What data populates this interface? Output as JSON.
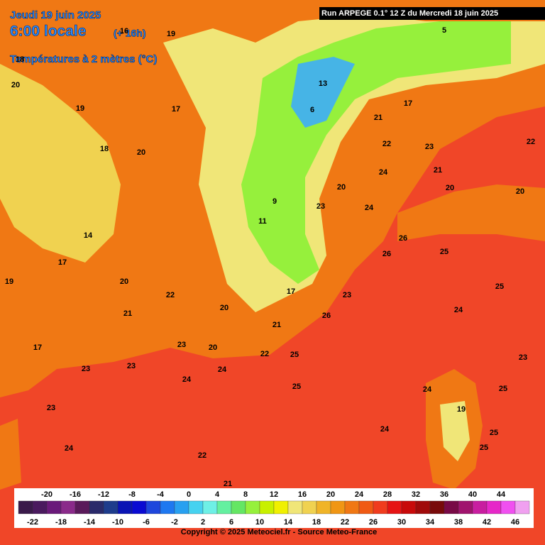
{
  "header": {
    "date": "Jeudi 19 juin 2025",
    "time": "6:00 locale",
    "lead": "(+ 16h)",
    "parameter": "Températures à 2 mètres (°C)",
    "run": "Run ARPEGE 0.1° 12 Z du Mercredi 18 juin 2025"
  },
  "map_labels": [
    22,
    23,
    24,
    20,
    21,
    20,
    25,
    26,
    26,
    24,
    25,
    23,
    24,
    25,
    24,
    25,
    25,
    24,
    23,
    23,
    23,
    24,
    22,
    21,
    25,
    25,
    24,
    22,
    23,
    20,
    22,
    20,
    21,
    20,
    17,
    14,
    18,
    19,
    20,
    16,
    19,
    17,
    18,
    20,
    19,
    17,
    21,
    23,
    26,
    20,
    23,
    24,
    22,
    21,
    13,
    6,
    9,
    11,
    5,
    17,
    19,
    17
  ],
  "scale": {
    "labels": [
      -22,
      -20,
      -18,
      -16,
      -14,
      -12,
      -10,
      -8,
      -6,
      -4,
      -2,
      0,
      2,
      4,
      6,
      8,
      10,
      12,
      14,
      16,
      18,
      20,
      22,
      24,
      26,
      28,
      30,
      32,
      34,
      36,
      38,
      40,
      42,
      44,
      46
    ],
    "colors": [
      "#3a1a4a",
      "#4a1a5e",
      "#6a1a7a",
      "#8a2a8a",
      "#5a1a5a",
      "#2a2a6a",
      "#1e3c8c",
      "#0a14b4",
      "#0a0ad2",
      "#1e46dc",
      "#1e78f0",
      "#28a0f0",
      "#46d2f0",
      "#6ef0e6",
      "#64f0a0",
      "#64e664",
      "#96f03c",
      "#c8f000",
      "#f0f000",
      "#f0e678",
      "#f0d250",
      "#f0b428",
      "#f09614",
      "#f07814",
      "#f05a14",
      "#f03c1e",
      "#e61414",
      "#c80a0a",
      "#a00a0a",
      "#780a0a",
      "#780a46",
      "#a0146e",
      "#c81ea0",
      "#e628c8",
      "#f050f0",
      "#f0a0f0"
    ]
  },
  "footer": {
    "copyright": "Copyright © 2025 Meteociel.fr - Source Meteo-France"
  }
}
